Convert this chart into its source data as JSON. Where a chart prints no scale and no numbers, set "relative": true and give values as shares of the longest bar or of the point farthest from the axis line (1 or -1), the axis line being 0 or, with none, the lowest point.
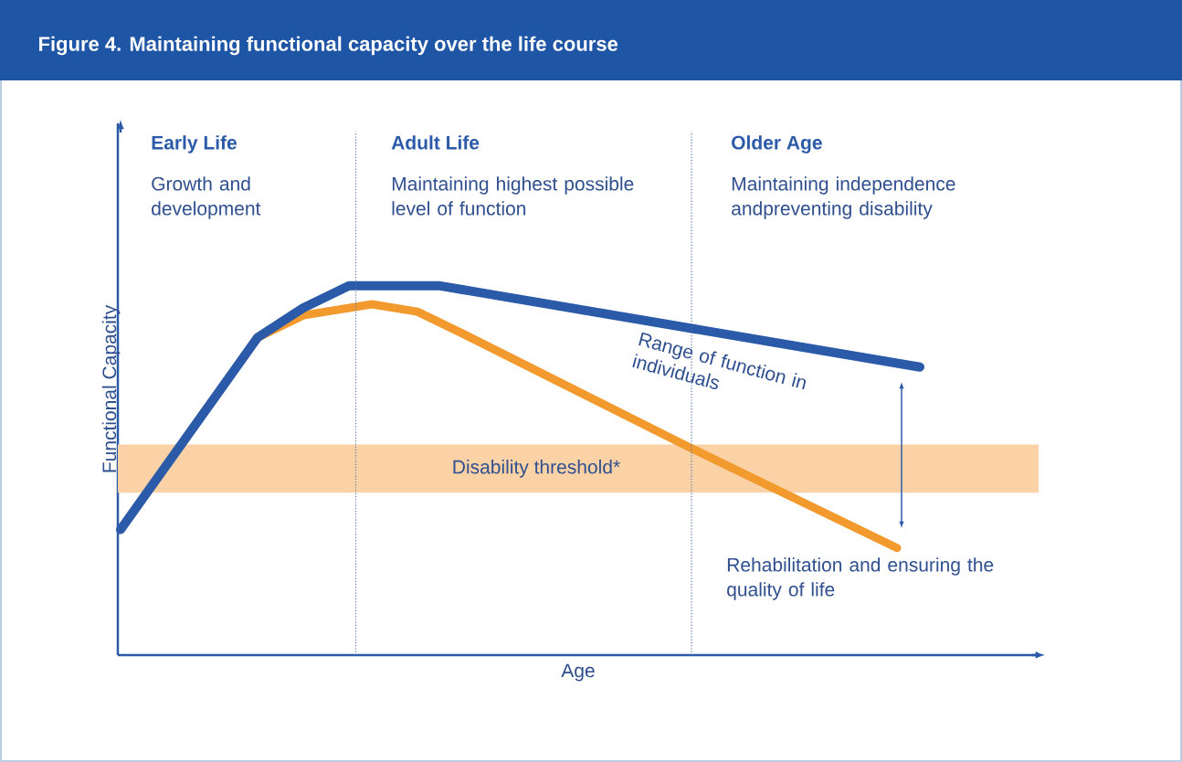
{
  "chart_data": {
    "type": "line",
    "relative": true,
    "title": "Figure 4. Maintaining functional capacity over the life course",
    "xlabel": "Age",
    "ylabel": "Functional Capacity",
    "categories": [
      null,
      null,
      null,
      null,
      null,
      null,
      null,
      null,
      null,
      null,
      null,
      null,
      null,
      null,
      null,
      null,
      null,
      null,
      null,
      null,
      null,
      null,
      null,
      null,
      null,
      null,
      null,
      null,
      null,
      null,
      null,
      null,
      null,
      null,
      null,
      null,
      null,
      null,
      null,
      null,
      null
    ],
    "series": [
      {
        "color": "#f39a2e",
        "values": [
          null,
          null,
          null,
          null,
          null,
          null,
          0.86,
          null,
          0.92,
          null,
          null,
          0.95,
          null,
          0.93,
          null,
          0.87,
          null,
          null,
          null,
          null,
          null,
          null,
          null,
          null,
          null,
          0.56,
          null,
          null,
          null,
          null,
          null,
          null,
          null,
          null,
          0.29,
          null,
          null,
          null,
          null,
          null,
          null
        ]
      },
      {
        "color": "#2b5aa8",
        "values": [
          0.34,
          null,
          null,
          null,
          null,
          null,
          0.86,
          null,
          0.94,
          null,
          1.0,
          null,
          null,
          null,
          1.0,
          null,
          null,
          null,
          null,
          null,
          null,
          null,
          null,
          null,
          null,
          null,
          null,
          null,
          null,
          null,
          null,
          null,
          null,
          null,
          null,
          0.78,
          null,
          null,
          null,
          null,
          null
        ]
      }
    ],
    "bands": [
      {
        "axis": "y",
        "from": 0.44,
        "to": 0.57,
        "label": "Disability threshold*",
        "color": "#fbd2a6"
      }
    ],
    "annotations": [
      "Early Life",
      "Growth and development",
      "Adult Life",
      "Maintaining highest possible level of function",
      "Older Age",
      "Maintaining independence andpreventing disability",
      "Range of function in individuals",
      "Rehabilitation and ensuring the quality of life"
    ]
  }
}
